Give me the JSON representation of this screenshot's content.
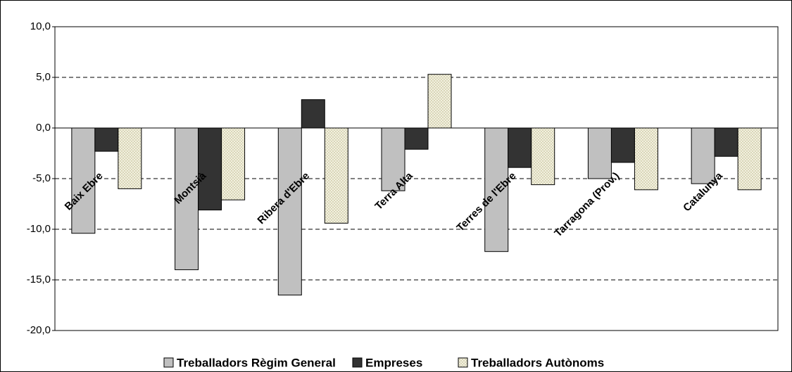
{
  "chart_data": {
    "type": "bar",
    "categories": [
      "Baix Ebre",
      "Montsià",
      "Ribera d'Ebre",
      "Terra Alta",
      "Terres de l'Ebre",
      "Tarragona (Prov.)",
      "Catalunya"
    ],
    "series": [
      {
        "name": "Treballadors Règim General",
        "color": "#c0c0c0",
        "values": [
          -10.4,
          -14.0,
          -16.5,
          -6.2,
          -12.2,
          -5.0,
          -5.5
        ]
      },
      {
        "name": "Empreses",
        "color": "#333333",
        "values": [
          -2.3,
          -8.1,
          2.8,
          -2.1,
          -3.9,
          -3.4,
          -2.8
        ]
      },
      {
        "name": "Treballadors Autònoms",
        "color": "#d9d6b8",
        "values": [
          -6.0,
          -7.1,
          -9.4,
          5.3,
          -5.6,
          -6.1,
          -6.1
        ]
      }
    ],
    "ylim": [
      -20,
      10
    ],
    "yticks": [
      {
        "value": -20,
        "label": "-20,0"
      },
      {
        "value": -15,
        "label": "-15,0"
      },
      {
        "value": -10,
        "label": "-10,0"
      },
      {
        "value": -5,
        "label": "-5,0"
      },
      {
        "value": 0,
        "label": "0,0"
      },
      {
        "value": 5,
        "label": "5,0"
      },
      {
        "value": 10,
        "label": "10,0"
      }
    ],
    "grid": true
  }
}
